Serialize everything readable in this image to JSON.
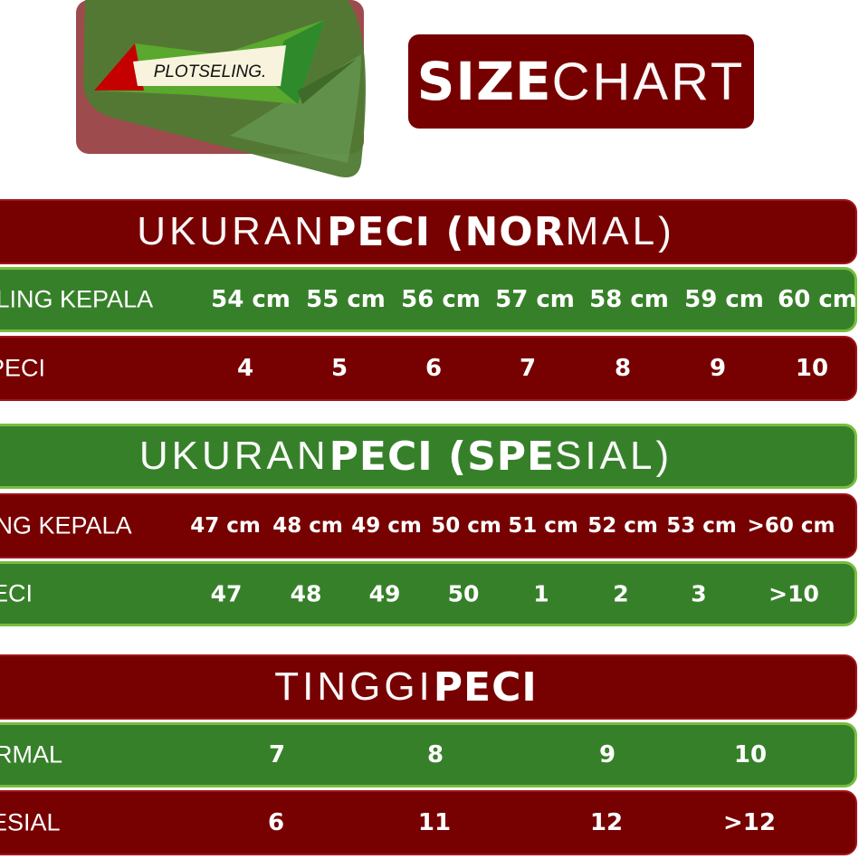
{
  "logo": {
    "text": "PLOTSELING."
  },
  "title": {
    "bold": "SIZE",
    "thin": "CHART"
  },
  "colors": {
    "maroon": "#770000",
    "green": "#37802a",
    "light_green": "#76bd3e"
  },
  "normal": {
    "header": {
      "thin1": "UKURAN",
      "bold": "PECI (NOR",
      "thin2": "MAL)"
    },
    "row1": {
      "label": "LILING KEPALA",
      "values": [
        "54 cm",
        "55 cm",
        "56 cm",
        "57 cm",
        "58 cm",
        "59 cm",
        "60 cm"
      ]
    },
    "row2": {
      "label": ". PECI",
      "values": [
        "4",
        "5",
        "6",
        "7",
        "8",
        "9",
        "10"
      ]
    }
  },
  "special": {
    "header": {
      "thin1": "UKURAN",
      "bold": "PECI (SPE",
      "thin2": "SIAL)"
    },
    "row1": {
      "label": "LING KEPALA",
      "values": [
        "47 cm",
        "48 cm",
        "49 cm",
        "50 cm",
        "51 cm",
        "52 cm",
        "53 cm",
        ">60 cm"
      ]
    },
    "row2": {
      "label": "PECI",
      "values": [
        "47",
        "48",
        "49",
        "50",
        "1",
        "2",
        "3",
        ">10"
      ]
    }
  },
  "height": {
    "header": {
      "thin1": "TINGGI",
      "bold": "PECI"
    },
    "row1": {
      "label": "ORMAL",
      "values": [
        "7",
        "8",
        "9",
        "10"
      ]
    },
    "row2": {
      "label": "PESIAL",
      "values": [
        "6",
        "11",
        "12",
        ">12"
      ]
    }
  }
}
